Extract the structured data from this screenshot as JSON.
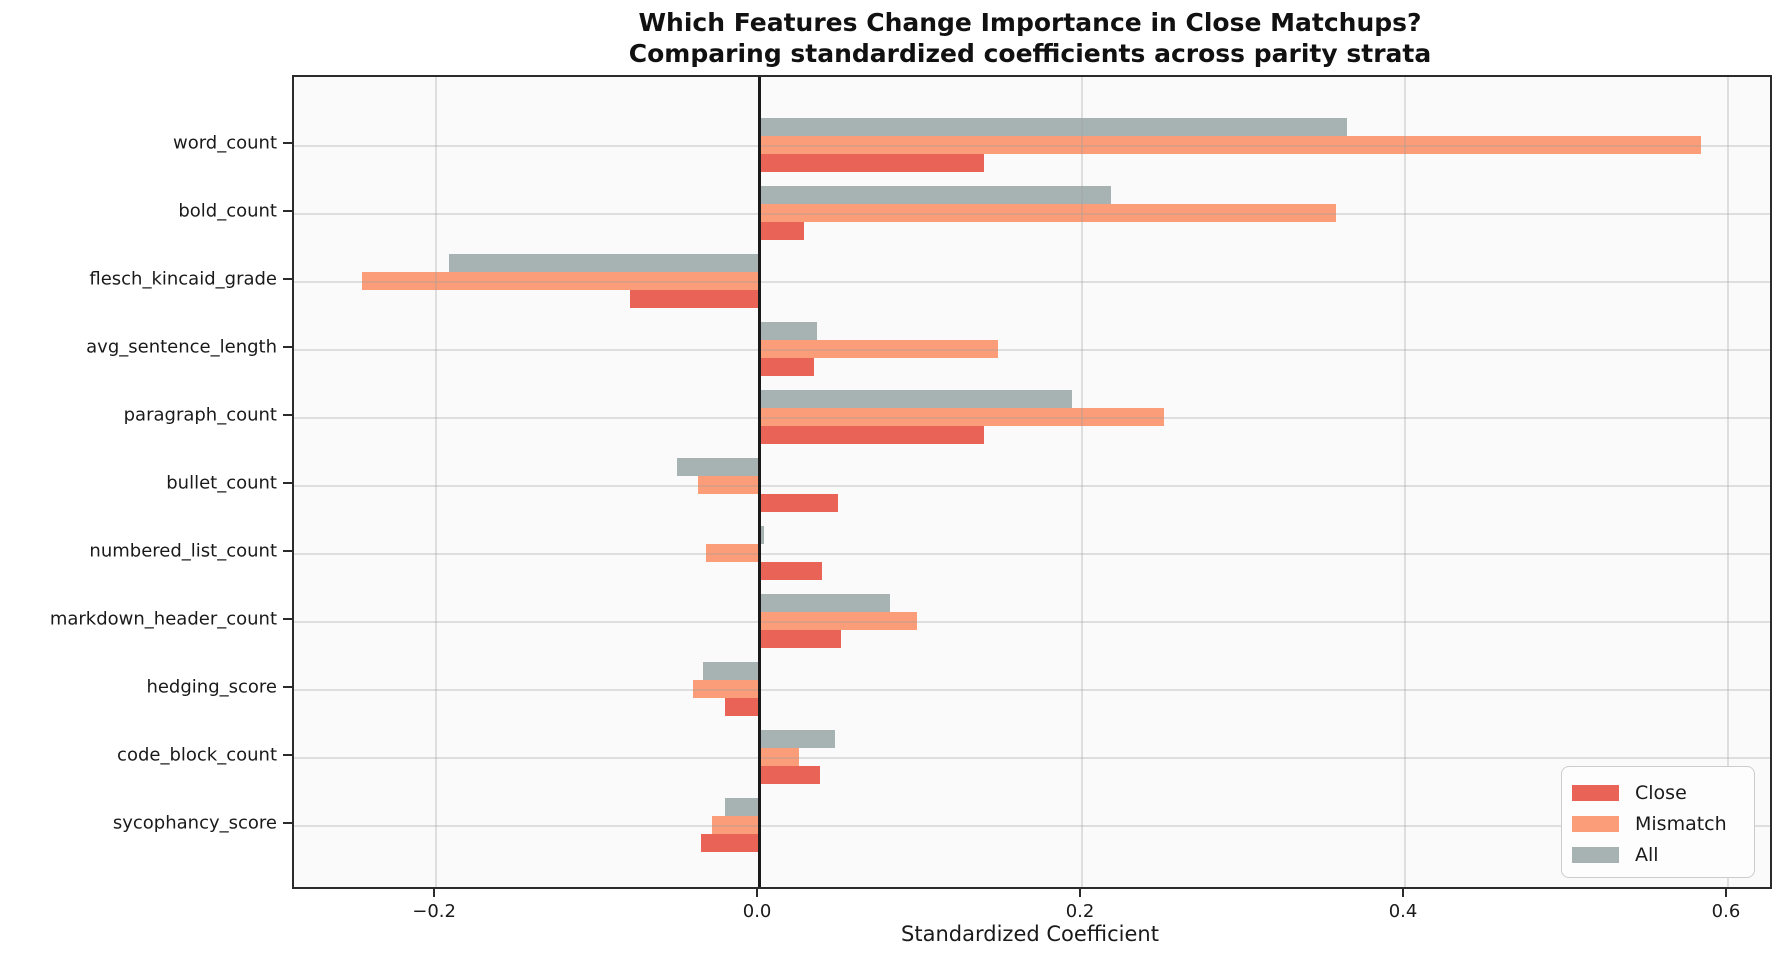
{
  "chart_data": {
    "type": "bar",
    "orientation": "horizontal",
    "title": "Which Features Change Importance in Close Matchups?",
    "subtitle": "Comparing standardized coefficients across parity strata",
    "xlabel": "Standardized Coefficient",
    "categories": [
      "word_count",
      "bold_count",
      "flesch_kincaid_grade",
      "avg_sentence_length",
      "paragraph_count",
      "bullet_count",
      "numbered_list_count",
      "markdown_header_count",
      "hedging_score",
      "code_block_count",
      "sycophancy_score"
    ],
    "series": [
      {
        "name": "Close",
        "color": "#EA6357",
        "values": [
          0.139,
          0.028,
          -0.08,
          0.034,
          0.139,
          0.049,
          0.039,
          0.051,
          -0.021,
          0.038,
          -0.036
        ]
      },
      {
        "name": "Mismatch",
        "color": "#FA9D78",
        "values": [
          0.583,
          0.357,
          -0.246,
          0.148,
          0.251,
          -0.038,
          -0.033,
          0.098,
          -0.041,
          0.025,
          -0.029
        ]
      },
      {
        "name": "All",
        "color": "#A7B2B2",
        "values": [
          0.364,
          0.218,
          -0.192,
          0.036,
          0.194,
          -0.051,
          0.003,
          0.081,
          -0.035,
          0.047,
          -0.021
        ]
      }
    ],
    "row_order_top_to_bottom": [
      "All",
      "Mismatch",
      "Close"
    ],
    "xlim": [
      -0.288,
      0.626
    ],
    "xticks": [
      -0.2,
      0.0,
      0.2,
      0.4,
      0.6
    ],
    "xtick_labels": [
      "−0.2",
      "0.0",
      "0.2",
      "0.4",
      "0.6"
    ],
    "grid": true,
    "zero_line": true,
    "legend": {
      "position": "lower-right",
      "entries": [
        "Close",
        "Mismatch",
        "All"
      ]
    },
    "colors": {
      "plot_bg": "#fafafa",
      "grid": "#dcdcdc",
      "spine": "#2b2b2b",
      "zero_line": "#1a1a1a",
      "text": "#1a1a1a",
      "legend_bg": "#fdfdfd",
      "legend_border": "#cccccc"
    }
  }
}
